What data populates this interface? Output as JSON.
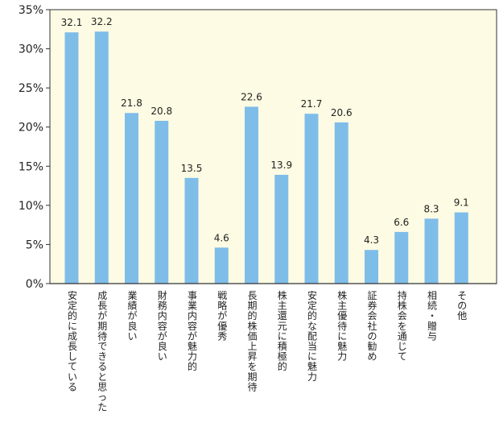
{
  "chart_data": {
    "type": "bar",
    "title": "",
    "xlabel": "",
    "ylabel": "",
    "ylim": [
      0,
      35
    ],
    "y_tick_step": 5,
    "y_tick_suffix": "%",
    "grid": false,
    "colors": {
      "plot_background": "#fdfbe3",
      "bar": "#7fbde9",
      "axis": "#333333"
    },
    "categories": [
      "安定的に成長している",
      "成長が期待できると思った",
      "業績が良い",
      "財務内容が良い",
      "事業内容が魅力的",
      "戦略が優秀",
      "長期的株価上昇を期待",
      "株主還元に積極的",
      "安定的な配当に魅力",
      "株主優待に魅力",
      "証券会社の勧め",
      "持株会を通じて",
      "相続・贈与",
      "その他"
    ],
    "values": [
      32.1,
      32.2,
      21.8,
      20.8,
      13.5,
      4.6,
      22.6,
      13.9,
      21.7,
      20.6,
      4.3,
      6.6,
      8.3,
      9.1
    ],
    "value_labels": [
      "32.1",
      "32.2",
      "21.8",
      "20.8",
      "13.5",
      "4.6",
      "22.6",
      "13.9",
      "21.7",
      "20.6",
      "4.3",
      "6.6",
      "8.3",
      "9.1"
    ]
  }
}
